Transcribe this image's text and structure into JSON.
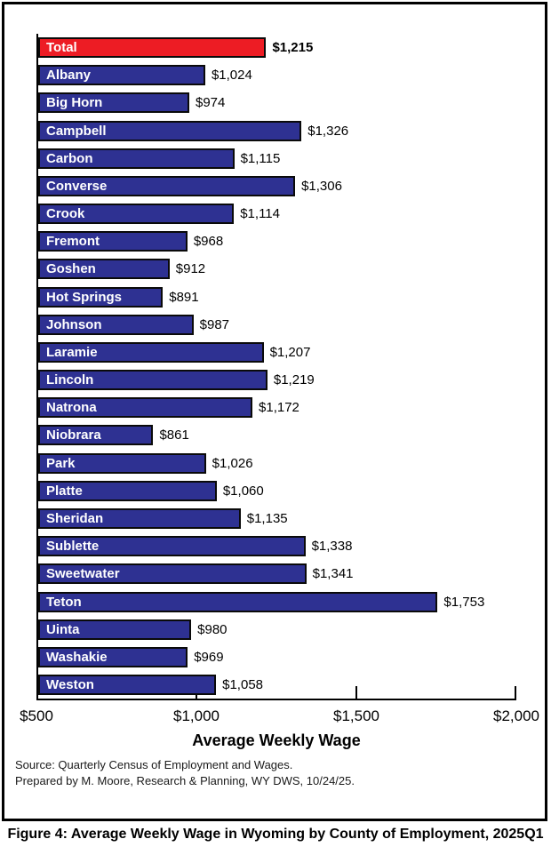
{
  "caption": "Figure 4: Average Weekly Wage in Wyoming by County of Employment, 2025Q1",
  "footer": {
    "source_line1": "Source: Quarterly Census of Employment and Wages.",
    "source_line2": "Prepared by M. Moore, Research & Planning, WY DWS, 10/24/25."
  },
  "chart_data": {
    "type": "bar",
    "orientation": "horizontal",
    "xlabel": "Average Weekly Wage",
    "xlim": [
      500,
      2000
    ],
    "tick_values": [
      500,
      1000,
      1500,
      2000
    ],
    "tick_labels": [
      "$500",
      "$1,000",
      "$1,500",
      "$2,000"
    ],
    "grid": false,
    "legend": "none",
    "colors": {
      "total": "#ED1C24",
      "county": "#2E3192",
      "bar_border": "#0a0a0a"
    },
    "categories": [
      "Total",
      "Albany",
      "Big Horn",
      "Campbell",
      "Carbon",
      "Converse",
      "Crook",
      "Fremont",
      "Goshen",
      "Hot Springs",
      "Johnson",
      "Laramie",
      "Lincoln",
      "Natrona",
      "Niobrara",
      "Park",
      "Platte",
      "Sheridan",
      "Sublette",
      "Sweetwater",
      "Teton",
      "Uinta",
      "Washakie",
      "Weston"
    ],
    "values": [
      1215,
      1024,
      974,
      1326,
      1115,
      1306,
      1114,
      968,
      912,
      891,
      987,
      1207,
      1219,
      1172,
      861,
      1026,
      1060,
      1135,
      1338,
      1341,
      1753,
      980,
      969,
      1058
    ],
    "bars": [
      {
        "label": "Total",
        "value": 1215,
        "display": "$1,215",
        "is_total": true
      },
      {
        "label": "Albany",
        "value": 1024,
        "display": "$1,024",
        "is_total": false
      },
      {
        "label": "Big Horn",
        "value": 974,
        "display": "$974",
        "is_total": false
      },
      {
        "label": "Campbell",
        "value": 1326,
        "display": "$1,326",
        "is_total": false
      },
      {
        "label": "Carbon",
        "value": 1115,
        "display": "$1,115",
        "is_total": false
      },
      {
        "label": "Converse",
        "value": 1306,
        "display": "$1,306",
        "is_total": false
      },
      {
        "label": "Crook",
        "value": 1114,
        "display": "$1,114",
        "is_total": false
      },
      {
        "label": "Fremont",
        "value": 968,
        "display": "$968",
        "is_total": false
      },
      {
        "label": "Goshen",
        "value": 912,
        "display": "$912",
        "is_total": false
      },
      {
        "label": "Hot Springs",
        "value": 891,
        "display": "$891",
        "is_total": false
      },
      {
        "label": "Johnson",
        "value": 987,
        "display": "$987",
        "is_total": false
      },
      {
        "label": "Laramie",
        "value": 1207,
        "display": "$1,207",
        "is_total": false
      },
      {
        "label": "Lincoln",
        "value": 1219,
        "display": "$1,219",
        "is_total": false
      },
      {
        "label": "Natrona",
        "value": 1172,
        "display": "$1,172",
        "is_total": false
      },
      {
        "label": "Niobrara",
        "value": 861,
        "display": "$861",
        "is_total": false
      },
      {
        "label": "Park",
        "value": 1026,
        "display": "$1,026",
        "is_total": false
      },
      {
        "label": "Platte",
        "value": 1060,
        "display": "$1,060",
        "is_total": false
      },
      {
        "label": "Sheridan",
        "value": 1135,
        "display": "$1,135",
        "is_total": false
      },
      {
        "label": "Sublette",
        "value": 1338,
        "display": "$1,338",
        "is_total": false
      },
      {
        "label": "Sweetwater",
        "value": 1341,
        "display": "$1,341",
        "is_total": false
      },
      {
        "label": "Teton",
        "value": 1753,
        "display": "$1,753",
        "is_total": false
      },
      {
        "label": "Uinta",
        "value": 980,
        "display": "$980",
        "is_total": false
      },
      {
        "label": "Washakie",
        "value": 969,
        "display": "$969",
        "is_total": false
      },
      {
        "label": "Weston",
        "value": 1058,
        "display": "$1,058",
        "is_total": false
      }
    ]
  }
}
